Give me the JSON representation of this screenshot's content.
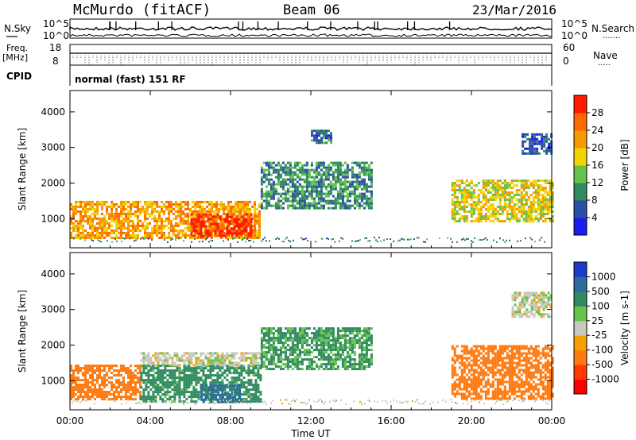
{
  "header": {
    "station": "McMurdo (fitACF)",
    "beam": "Beam 06",
    "date": "23/Mar/2016"
  },
  "param_panel": {
    "left_labels": [
      "N.Sky",
      "Freq.",
      "[MHz]",
      "CPID"
    ],
    "right_labels": [
      "N.Search",
      "Nave"
    ],
    "noise_ticks_left": [
      "10^5",
      "10^0"
    ],
    "noise_ticks_right": [
      "10^5",
      "10^0"
    ],
    "freq_ticks": [
      "18",
      "8"
    ],
    "nave_ticks": [
      "60",
      "0"
    ],
    "cpid_text": "normal (fast) 151 RF"
  },
  "chart_data": [
    {
      "type": "heatmap",
      "title": "",
      "xlabel": "",
      "ylabel": "Slant Range [km]",
      "x_ticks": [
        "00:00",
        "04:00",
        "08:00",
        "12:00",
        "16:00",
        "20:00",
        "00:00"
      ],
      "y_ticks": [
        1000,
        2000,
        3000,
        4000
      ],
      "xlim": [
        0,
        24
      ],
      "ylim": [
        180,
        4600
      ],
      "colorbar": {
        "label": "Power [dB]",
        "ticks": [
          "4",
          "8",
          "12",
          "16",
          "20",
          "24",
          "28"
        ],
        "colors": [
          "#1c1cf0",
          "#2a4fa6",
          "#2f8a5f",
          "#66c24a",
          "#f2d400",
          "#f59a00",
          "#ff6a00",
          "#ff1a00"
        ]
      },
      "regions": [
        {
          "t0": 0.0,
          "t1": 9.5,
          "r0": 450,
          "r1": 1500,
          "value": 22
        },
        {
          "t0": 6.0,
          "t1": 9.0,
          "r0": 500,
          "r1": 1150,
          "value": 30
        },
        {
          "t0": 9.5,
          "t1": 15.0,
          "r0": 1300,
          "r1": 2600,
          "value": 10
        },
        {
          "t0": 12.0,
          "t1": 13.0,
          "r0": 3100,
          "r1": 3500,
          "value": 8
        },
        {
          "t0": 19.0,
          "t1": 24.0,
          "r0": 900,
          "r1": 2100,
          "value": 18
        },
        {
          "t0": 22.5,
          "t1": 24.0,
          "r0": 2800,
          "r1": 3400,
          "value": 6
        }
      ]
    },
    {
      "type": "heatmap",
      "title": "",
      "xlabel": "Time UT",
      "ylabel": "Slant Range [km]",
      "x_ticks": [
        "00:00",
        "04:00",
        "08:00",
        "12:00",
        "16:00",
        "20:00",
        "00:00"
      ],
      "y_ticks": [
        1000,
        2000,
        3000,
        4000
      ],
      "xlim": [
        0,
        24
      ],
      "ylim": [
        180,
        4600
      ],
      "colorbar": {
        "label": "Velocity [m s-1]",
        "ticks": [
          "1000",
          "500",
          "100",
          "25",
          "-25",
          "-100",
          "-500",
          "-1000"
        ],
        "colors": [
          "#1c3cc8",
          "#2c6aa0",
          "#2f8a5f",
          "#66c24a",
          "#c8c8c0",
          "#f5a000",
          "#ff7a10",
          "#ff3a00",
          "#ff0000"
        ]
      },
      "regions": [
        {
          "t0": 0.0,
          "t1": 3.5,
          "r0": 450,
          "r1": 1450,
          "value": -300
        },
        {
          "t0": 3.5,
          "t1": 9.5,
          "r0": 400,
          "r1": 1450,
          "value": 150
        },
        {
          "t0": 6.5,
          "t1": 8.5,
          "r0": 400,
          "r1": 900,
          "value": 700
        },
        {
          "t0": 3.5,
          "t1": 9.5,
          "r0": 1450,
          "r1": 1800,
          "value": 0
        },
        {
          "t0": 9.5,
          "t1": 15.0,
          "r0": 1300,
          "r1": 2500,
          "value": 120
        },
        {
          "t0": 19.0,
          "t1": 24.0,
          "r0": 500,
          "r1": 2000,
          "value": -300
        },
        {
          "t0": 22.0,
          "t1": 24.0,
          "r0": 2800,
          "r1": 3500,
          "value": 0
        }
      ]
    }
  ]
}
